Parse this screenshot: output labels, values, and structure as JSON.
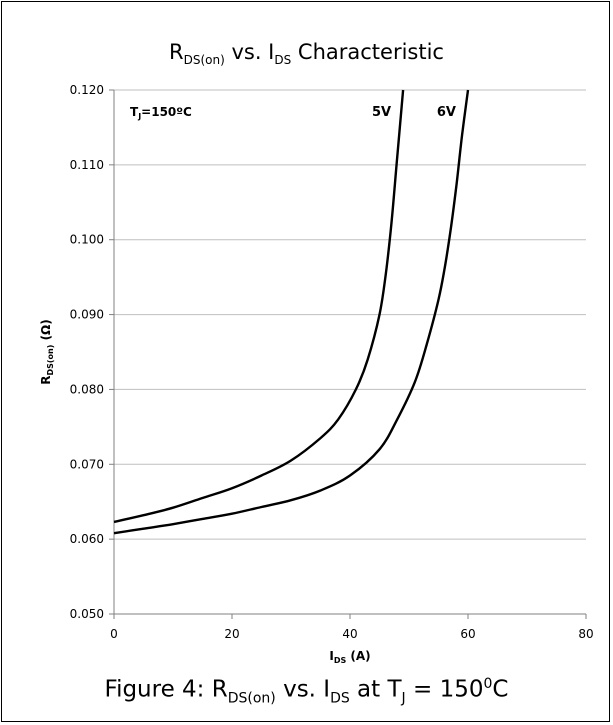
{
  "chart_data": {
    "type": "line",
    "title": {
      "r": "R",
      "r_sub": "DS(on)",
      "mid": " vs. I",
      "i_sub": "DS",
      "tail": " Characteristic"
    },
    "xlabel": {
      "main": "I",
      "sub": "DS",
      "tail": " (A)"
    },
    "ylabel": {
      "main": "R",
      "sub": "DS(on)",
      "tail": " (Ω)"
    },
    "xlim": [
      0,
      80
    ],
    "ylim": [
      0.05,
      0.12
    ],
    "x_ticks": [
      0,
      20,
      40,
      60,
      80
    ],
    "y_ticks": [
      0.05,
      0.06,
      0.07,
      0.08,
      0.09,
      0.1,
      0.11,
      0.12
    ],
    "y_tick_labels": [
      "0.050",
      "0.060",
      "0.070",
      "0.080",
      "0.090",
      "0.100",
      "0.110",
      "0.120"
    ],
    "x_tick_labels": [
      "0",
      "20",
      "40",
      "60",
      "80"
    ],
    "grid": {
      "horizontal": true,
      "vertical": false
    },
    "annotation": {
      "main": "T",
      "sub": "J",
      "tail": "=150ºC"
    },
    "series": [
      {
        "name": "5V",
        "color": "#000000",
        "x": [
          0,
          5,
          10,
          15,
          20,
          25,
          30,
          35,
          38,
          41,
          43,
          45,
          46,
          47,
          48,
          49
        ],
        "y": [
          0.0623,
          0.0632,
          0.0642,
          0.0655,
          0.0668,
          0.0685,
          0.0705,
          0.0735,
          0.076,
          0.08,
          0.084,
          0.09,
          0.095,
          0.102,
          0.111,
          0.12
        ]
      },
      {
        "name": "6V",
        "color": "#000000",
        "x": [
          0,
          5,
          10,
          15,
          20,
          25,
          30,
          35,
          40,
          45,
          48,
          51,
          53,
          55,
          56,
          57,
          58,
          59,
          60
        ],
        "y": [
          0.0608,
          0.0614,
          0.062,
          0.0627,
          0.0634,
          0.0643,
          0.0652,
          0.0665,
          0.0685,
          0.072,
          0.076,
          0.081,
          0.086,
          0.092,
          0.096,
          0.101,
          0.107,
          0.114,
          0.12
        ]
      }
    ]
  },
  "caption": {
    "text": "Figure 4: R",
    "r_sub": "DS(on)",
    "mid": " vs. I",
    "i_sub": "DS",
    "at": "  at T",
    "tj_sub": "J",
    "eq": " = 150",
    "deg": "0",
    "unit": "C"
  }
}
